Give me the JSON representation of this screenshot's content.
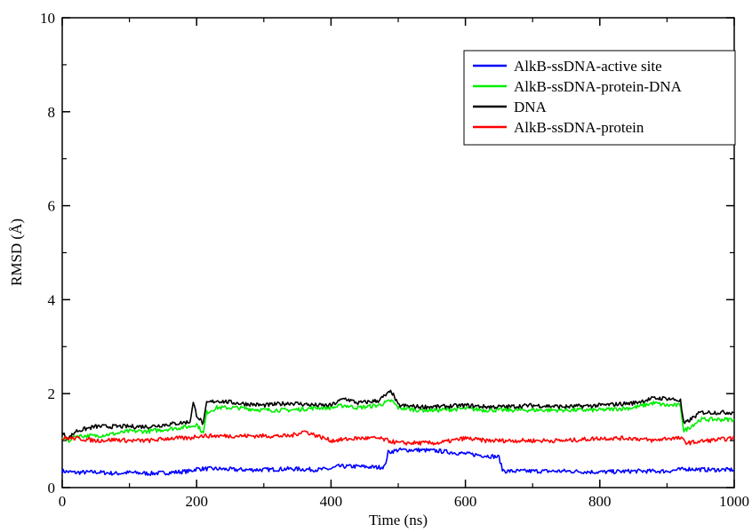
{
  "chart_data": {
    "type": "line",
    "title": "",
    "xlabel": "Time (ns)",
    "ylabel": "RMSD (Å)",
    "xlim": [
      0,
      1000
    ],
    "ylim": [
      0,
      10
    ],
    "xticks": [
      0,
      200,
      400,
      600,
      800,
      1000
    ],
    "yticks": [
      0,
      2,
      4,
      6,
      8,
      10
    ],
    "grid": false,
    "legend_position": "top-right",
    "series": [
      {
        "name": "AlkB-ssDNA-active site",
        "color": "#0000ff",
        "x": [
          0,
          20,
          50,
          80,
          100,
          130,
          160,
          190,
          200,
          230,
          260,
          300,
          340,
          380,
          400,
          410,
          440,
          470,
          480,
          485,
          500,
          530,
          560,
          600,
          630,
          650,
          655,
          660,
          700,
          750,
          800,
          850,
          900,
          930,
          960,
          1000
        ],
        "y": [
          0.35,
          0.32,
          0.33,
          0.3,
          0.32,
          0.3,
          0.32,
          0.35,
          0.4,
          0.4,
          0.38,
          0.38,
          0.4,
          0.38,
          0.4,
          0.45,
          0.45,
          0.43,
          0.45,
          0.75,
          0.8,
          0.8,
          0.78,
          0.72,
          0.68,
          0.65,
          0.38,
          0.35,
          0.35,
          0.35,
          0.33,
          0.35,
          0.35,
          0.4,
          0.38,
          0.38
        ]
      },
      {
        "name": "AlkB-ssDNA-protein-DNA",
        "color": "#00ee00",
        "x": [
          0,
          10,
          20,
          50,
          80,
          100,
          130,
          160,
          190,
          200,
          210,
          215,
          230,
          260,
          300,
          340,
          380,
          400,
          420,
          440,
          470,
          480,
          490,
          500,
          530,
          560,
          600,
          630,
          660,
          700,
          750,
          800,
          850,
          880,
          900,
          920,
          925,
          935,
          950,
          1000
        ],
        "y": [
          1.05,
          1.0,
          1.1,
          1.1,
          1.15,
          1.2,
          1.2,
          1.25,
          1.3,
          1.35,
          1.15,
          1.6,
          1.7,
          1.7,
          1.65,
          1.65,
          1.7,
          1.7,
          1.75,
          1.7,
          1.75,
          1.8,
          1.85,
          1.7,
          1.65,
          1.65,
          1.68,
          1.65,
          1.65,
          1.65,
          1.65,
          1.65,
          1.7,
          1.8,
          1.75,
          1.75,
          1.2,
          1.3,
          1.45,
          1.45
        ]
      },
      {
        "name": "DNA",
        "color": "#000000",
        "x": [
          0,
          10,
          20,
          50,
          80,
          100,
          130,
          160,
          190,
          195,
          200,
          210,
          215,
          230,
          260,
          300,
          340,
          380,
          400,
          420,
          440,
          470,
          480,
          490,
          500,
          530,
          560,
          600,
          630,
          660,
          700,
          750,
          800,
          850,
          880,
          900,
          920,
          925,
          935,
          950,
          1000
        ],
        "y": [
          1.15,
          1.05,
          1.2,
          1.3,
          1.3,
          1.3,
          1.3,
          1.35,
          1.4,
          1.8,
          1.55,
          1.35,
          1.8,
          1.85,
          1.8,
          1.75,
          1.8,
          1.75,
          1.75,
          1.9,
          1.8,
          1.85,
          1.95,
          2.05,
          1.75,
          1.72,
          1.72,
          1.75,
          1.72,
          1.72,
          1.75,
          1.72,
          1.75,
          1.8,
          1.9,
          1.9,
          1.85,
          1.35,
          1.45,
          1.6,
          1.6
        ]
      },
      {
        "name": "AlkB-ssDNA-protein",
        "color": "#ff0000",
        "x": [
          0,
          20,
          50,
          80,
          100,
          130,
          160,
          190,
          200,
          230,
          260,
          300,
          340,
          360,
          380,
          400,
          440,
          470,
          500,
          530,
          560,
          600,
          630,
          660,
          700,
          750,
          800,
          850,
          880,
          900,
          920,
          930,
          960,
          1000
        ],
        "y": [
          1.05,
          1.05,
          1.0,
          1.02,
          1.0,
          1.0,
          1.05,
          1.05,
          1.1,
          1.1,
          1.1,
          1.1,
          1.1,
          1.2,
          1.1,
          1.0,
          1.05,
          1.05,
          0.95,
          0.95,
          0.95,
          1.05,
          1.0,
          1.0,
          1.0,
          1.0,
          1.05,
          1.05,
          1.0,
          1.05,
          1.05,
          0.95,
          1.0,
          1.05
        ]
      }
    ]
  }
}
